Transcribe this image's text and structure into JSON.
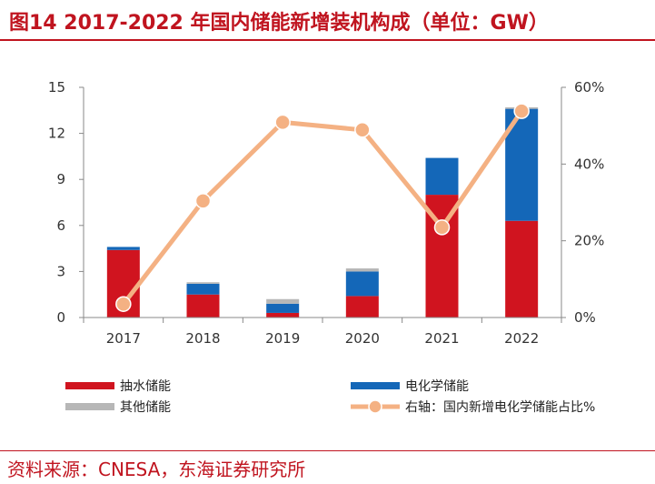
{
  "title": "图14  2017-2022 年国内储能新增装机构成（单位：GW）",
  "source": "资料来源：CNESA，东海证券研究所",
  "chart_data": {
    "type": "bar",
    "stacked": true,
    "categories": [
      "2017",
      "2018",
      "2019",
      "2020",
      "2021",
      "2022"
    ],
    "series": [
      {
        "name": "抽水储能",
        "axis": "left",
        "color": "#d0141f",
        "values": [
          4.4,
          1.5,
          0.3,
          1.4,
          8.0,
          6.3
        ]
      },
      {
        "name": "电化学储能",
        "axis": "left",
        "color": "#1467b8",
        "values": [
          0.2,
          0.7,
          0.6,
          1.6,
          2.4,
          7.3
        ]
      },
      {
        "name": "其他储能",
        "axis": "left",
        "color": "#b7b7b7",
        "values": [
          0.0,
          0.1,
          0.3,
          0.2,
          0.0,
          0.1
        ]
      },
      {
        "name": "右轴：国内新增电化学储能占比%",
        "axis": "right",
        "type": "line",
        "color": "#f4b183",
        "values": [
          3.5,
          30.4,
          50.9,
          48.9,
          23.5,
          53.8
        ]
      }
    ],
    "y_left": {
      "ylim": [
        0,
        15
      ],
      "ticks": [
        "0",
        "3",
        "6",
        "9",
        "12",
        "15"
      ]
    },
    "y_right": {
      "ylim": [
        0,
        60
      ],
      "ticks": [
        "0%",
        "20%",
        "40%",
        "60%"
      ]
    },
    "legend_position": "bottom"
  }
}
